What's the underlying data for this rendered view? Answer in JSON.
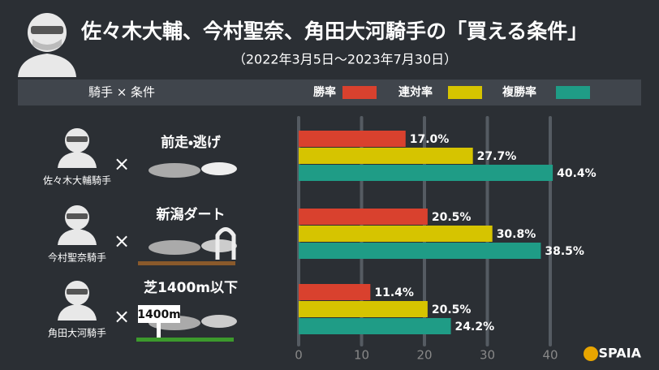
{
  "chart_data": {
    "type": "bar",
    "orientation": "horizontal",
    "title": "佐々木大輔、今村聖奈、角田大河騎手の「買える条件」",
    "subtitle": "（2022年3月5日～2023年7月30日）",
    "header_label": "騎手 × 条件",
    "separator": "×",
    "categories": [
      "前走・逃げ",
      "新潟ダート",
      "芝1400m以下"
    ],
    "jockeys": [
      "佐々木大輔騎手",
      "今村聖奈騎手",
      "角田大河騎手"
    ],
    "series": [
      {
        "name": "勝率",
        "color": "#d9412e",
        "values": [
          17.0,
          20.5,
          11.4
        ],
        "value_labels": [
          "17.0%",
          "20.5%",
          "11.4%"
        ]
      },
      {
        "name": "連対率",
        "color": "#d6c400",
        "values": [
          27.7,
          30.8,
          20.5
        ],
        "value_labels": [
          "27.7%",
          "30.8%",
          "20.5%"
        ]
      },
      {
        "name": "複勝率",
        "color": "#1f9c86",
        "values": [
          40.4,
          38.5,
          24.2
        ],
        "value_labels": [
          "40.4%",
          "38.5%",
          "24.2%"
        ]
      }
    ],
    "xlim": [
      0,
      40
    ],
    "xticks": [
      0,
      10,
      20,
      30,
      40
    ],
    "grid": true,
    "sign_text": "1400m",
    "brand": "SPAIA"
  }
}
